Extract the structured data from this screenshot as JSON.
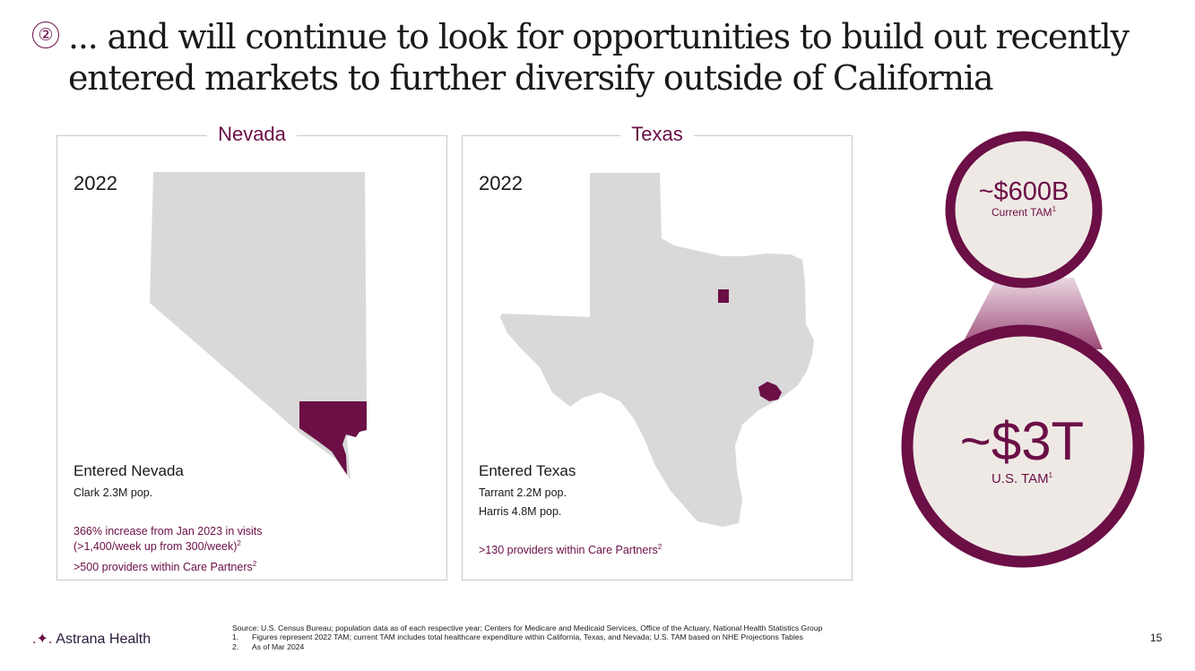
{
  "title": {
    "step": "②",
    "text": "... and will continue to look for opportunities to build out recently entered markets to further diversify outside of California"
  },
  "nevada": {
    "label": "Nevada",
    "year": "2022",
    "entered": "Entered Nevada",
    "pop": "Clark 2.3M pop.",
    "stat1": "366% increase from Jan 2023 in visits",
    "stat2": "(>1,400/week up from 300/week)",
    "stat2_sup": "2",
    "stat3": ">500 providers within Care Partners",
    "stat3_sup": "2"
  },
  "texas": {
    "label": "Texas",
    "year": "2022",
    "entered": "Entered Texas",
    "pop1": "Tarrant 2.2M pop.",
    "pop2": "Harris 4.8M pop.",
    "stat1": ">130 providers within Care Partners",
    "stat1_sup": "2"
  },
  "tam": {
    "current_value": "~$600B",
    "current_label": "Current TAM",
    "current_sup": "1",
    "us_value": "~$3T",
    "us_label": "U.S. TAM",
    "us_sup": "1"
  },
  "footer": {
    "logo": "Astrana Health",
    "source": "Source: U.S. Census Bureau; population data as of each respective year; Centers for Medicare and Medicaid Services, Office of the Actuary, National Health Statistics Group",
    "note1_num": "1.",
    "note1": "Figures represent 2022 TAM; current TAM includes total healthcare expenditure within California, Texas, and Nevada; U.S. TAM based on NHE Projections Tables",
    "note2_num": "2.",
    "note2": "As of Mar 2024",
    "page": "15"
  },
  "colors": {
    "accent": "#6b0f46",
    "map_fill": "#d9d9d9",
    "tam_fill": "#efe9e5"
  }
}
